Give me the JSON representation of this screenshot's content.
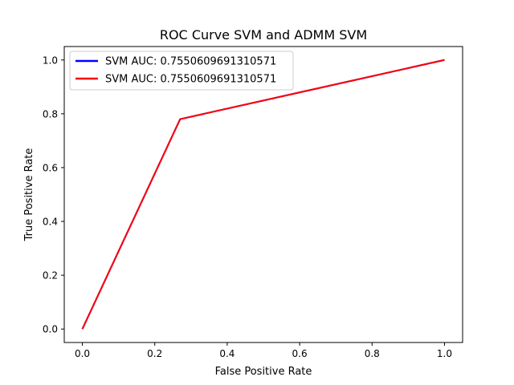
{
  "chart_data": {
    "type": "line",
    "title": "ROC Curve SVM and ADMM SVM",
    "xlabel": "False Positive Rate",
    "ylabel": "True Positive Rate",
    "xlim": [
      -0.05,
      1.05
    ],
    "ylim": [
      -0.05,
      1.05
    ],
    "xticks": [
      0.0,
      0.2,
      0.4,
      0.6,
      0.8,
      1.0
    ],
    "yticks": [
      0.0,
      0.2,
      0.4,
      0.6,
      0.8,
      1.0
    ],
    "xtick_labels": [
      "0.0",
      "0.2",
      "0.4",
      "0.6",
      "0.8",
      "1.0"
    ],
    "ytick_labels": [
      "0.0",
      "0.2",
      "0.4",
      "0.6",
      "0.8",
      "1.0"
    ],
    "grid": false,
    "legend_position": "upper-left",
    "series": [
      {
        "name": "SVM AUC: 0.7550609691310571",
        "color": "#0000ff",
        "x": [
          0.0,
          0.27,
          1.0
        ],
        "y": [
          0.0,
          0.78,
          1.0
        ]
      },
      {
        "name": "SVM AUC: 0.7550609691310571",
        "color": "#ff0000",
        "x": [
          0.0,
          0.27,
          1.0
        ],
        "y": [
          0.0,
          0.78,
          1.0
        ]
      }
    ]
  }
}
